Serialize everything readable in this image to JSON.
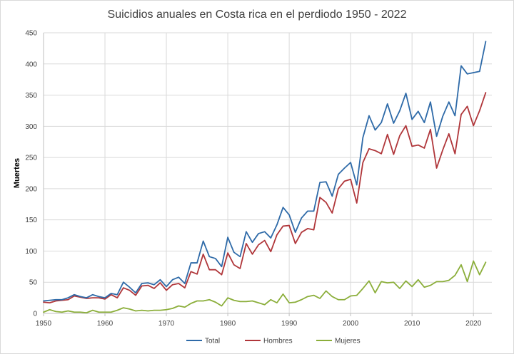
{
  "chart_data": {
    "type": "line",
    "title": "Suicidios anuales en Costa rica en el perdiodo 1950 - 2022",
    "xlabel": "",
    "ylabel": "Muertes",
    "xlim": [
      1950,
      2023
    ],
    "ylim": [
      0,
      450
    ],
    "x_ticks": [
      1950,
      1960,
      1970,
      1980,
      1990,
      2000,
      2010,
      2020
    ],
    "y_ticks": [
      0,
      50,
      100,
      150,
      200,
      250,
      300,
      350,
      400,
      450
    ],
    "grid": "vertical and horizontal",
    "legend_position": "bottom",
    "x": [
      1950,
      1951,
      1952,
      1953,
      1954,
      1955,
      1956,
      1957,
      1958,
      1959,
      1960,
      1961,
      1962,
      1963,
      1964,
      1965,
      1966,
      1967,
      1968,
      1969,
      1970,
      1971,
      1972,
      1973,
      1974,
      1975,
      1976,
      1977,
      1978,
      1979,
      1980,
      1981,
      1982,
      1983,
      1984,
      1985,
      1986,
      1987,
      1988,
      1989,
      1990,
      1991,
      1992,
      1993,
      1994,
      1995,
      1996,
      1997,
      1998,
      1999,
      2000,
      2001,
      2002,
      2003,
      2004,
      2005,
      2006,
      2007,
      2008,
      2009,
      2010,
      2011,
      2012,
      2013,
      2014,
      2015,
      2016,
      2017,
      2018,
      2019,
      2020,
      2021,
      2022
    ],
    "series": [
      {
        "name": "Total",
        "color": "#2E6AA8",
        "values": [
          20,
          21,
          22,
          22,
          25,
          30,
          27,
          25,
          30,
          27,
          25,
          32,
          30,
          50,
          42,
          33,
          48,
          49,
          46,
          54,
          43,
          54,
          58,
          48,
          81,
          81,
          116,
          91,
          88,
          75,
          122,
          98,
          91,
          131,
          114,
          128,
          131,
          121,
          142,
          170,
          158,
          130,
          153,
          164,
          164,
          210,
          211,
          188,
          223,
          233,
          242,
          206,
          282,
          317,
          294,
          306,
          336,
          305,
          325,
          353,
          311,
          324,
          306,
          339,
          284,
          316,
          339,
          317,
          397,
          384,
          386,
          388,
          436
        ]
      },
      {
        "name": "Hombres",
        "color": "#B0363A",
        "values": [
          18,
          17,
          20,
          21,
          22,
          28,
          26,
          24,
          25,
          25,
          23,
          30,
          25,
          41,
          37,
          29,
          44,
          45,
          40,
          49,
          37,
          46,
          48,
          41,
          67,
          63,
          95,
          70,
          70,
          62,
          97,
          78,
          72,
          112,
          95,
          110,
          117,
          99,
          126,
          140,
          141,
          112,
          130,
          136,
          134,
          186,
          178,
          161,
          200,
          212,
          215,
          177,
          242,
          264,
          261,
          256,
          287,
          255,
          285,
          301,
          268,
          270,
          265,
          295,
          233,
          262,
          288,
          256,
          319,
          332,
          301,
          325,
          354
        ]
      },
      {
        "name": "Mujeres",
        "color": "#8BAE3A",
        "values": [
          2,
          6,
          3,
          2,
          4,
          2,
          2,
          1,
          5,
          2,
          2,
          2,
          5,
          9,
          7,
          4,
          5,
          4,
          5,
          5,
          6,
          8,
          12,
          10,
          16,
          20,
          20,
          22,
          18,
          12,
          25,
          21,
          19,
          19,
          20,
          17,
          14,
          22,
          17,
          31,
          17,
          18,
          22,
          27,
          29,
          24,
          36,
          27,
          22,
          22,
          28,
          29,
          40,
          52,
          33,
          51,
          49,
          50,
          40,
          52,
          43,
          54,
          42,
          45,
          51,
          51,
          53,
          61,
          78,
          51,
          84,
          62,
          82
        ]
      }
    ]
  }
}
